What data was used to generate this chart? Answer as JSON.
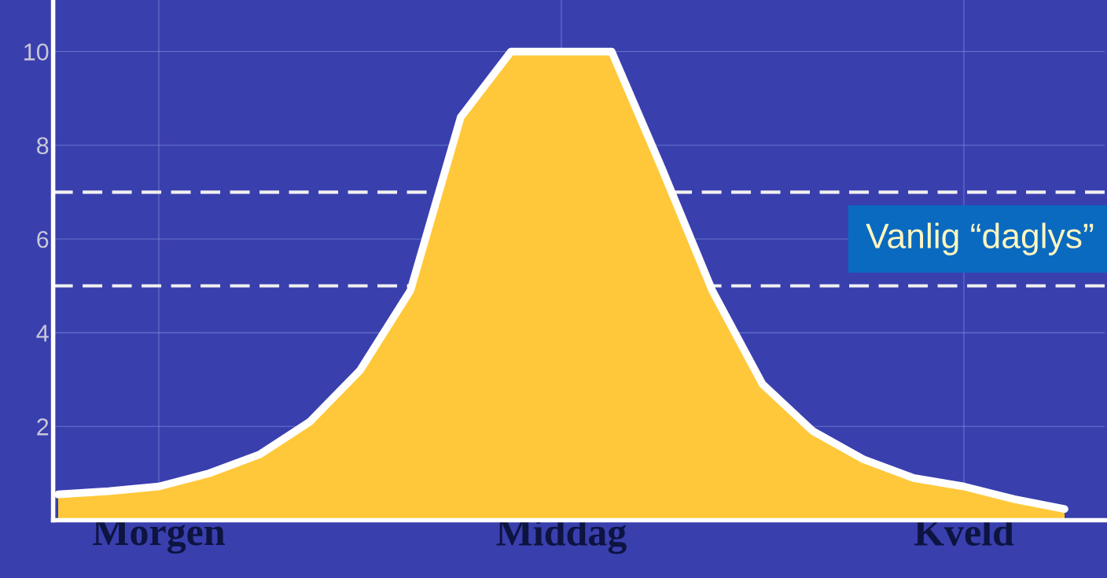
{
  "chart_data": {
    "type": "area",
    "categories": [
      null,
      null,
      "Morgen",
      null,
      null,
      null,
      null,
      null,
      null,
      null,
      "Middag",
      null,
      null,
      null,
      null,
      null,
      null,
      null,
      "Kveld",
      null,
      null
    ],
    "series": [
      {
        "color": "#ffc83a",
        "values": [
          0.55,
          0.62,
          0.72,
          1.0,
          1.4,
          2.1,
          3.2,
          4.9,
          8.6,
          10,
          10,
          10,
          7.5,
          4.9,
          2.9,
          1.9,
          1.3,
          0.9,
          0.72,
          0.45,
          0.24
        ]
      }
    ],
    "ylim": [
      0,
      11.1
    ],
    "yticks": [
      2,
      4,
      6,
      8,
      10
    ],
    "grid": true,
    "ref_lines": [
      {
        "axis": "y",
        "value": 7,
        "color": "#f0f0f0",
        "line_style": "dashed"
      },
      {
        "axis": "y",
        "value": 5,
        "color": "#f0f0f0",
        "line_style": "dashed"
      }
    ],
    "annotations": [
      "Vanlig “daglys”"
    ]
  }
}
